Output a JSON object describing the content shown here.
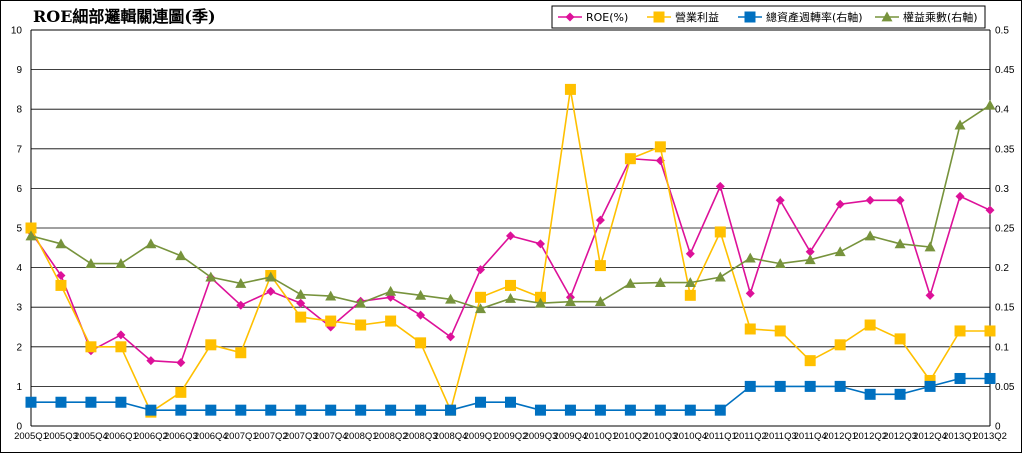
{
  "chart_data": {
    "type": "line",
    "title": "ROE細部邏輯關連圖(季)",
    "x": [
      "2005Q1",
      "2005Q3",
      "2005Q4",
      "2006Q1",
      "2006Q2",
      "2006Q3",
      "2006Q4",
      "2007Q1",
      "2007Q2",
      "2007Q3",
      "2007Q4",
      "2008Q1",
      "2008Q2",
      "2008Q3",
      "2008Q4",
      "2009Q1",
      "2009Q2",
      "2009Q3",
      "2009Q4",
      "2010Q1",
      "2010Q2",
      "2010Q3",
      "2010Q4",
      "2011Q1",
      "2011Q2",
      "2011Q3",
      "2011Q4",
      "2012Q1",
      "2012Q2",
      "2012Q3",
      "2012Q4",
      "2013Q1",
      "2013Q2"
    ],
    "y_left": {
      "min": 0,
      "max": 10,
      "ticks": [
        "0",
        "1",
        "2",
        "3",
        "4",
        "5",
        "6",
        "7",
        "8",
        "9",
        "10"
      ]
    },
    "y_right": {
      "min": 0,
      "max": 0.5,
      "ticks": [
        "0",
        "0.05",
        "0.1",
        "0.15",
        "0.2",
        "0.25",
        "0.3",
        "0.35",
        "0.4",
        "0.45",
        "0.5"
      ]
    },
    "grid": true,
    "legend_position": "top-right",
    "series": [
      {
        "name": "ROE(%)",
        "axis": "left",
        "color": "#dd1199",
        "marker": "diamond",
        "values": [
          4.9,
          3.8,
          1.9,
          2.3,
          1.65,
          1.6,
          3.75,
          3.05,
          3.4,
          3.1,
          2.5,
          3.15,
          3.25,
          2.8,
          2.25,
          3.95,
          4.8,
          4.6,
          3.25,
          5.2,
          6.75,
          6.7,
          4.35,
          6.05,
          3.35,
          5.7,
          4.4,
          5.6,
          5.7,
          5.7,
          3.3,
          5.8,
          5.45
        ]
      },
      {
        "name": "營業利益",
        "axis": "left",
        "color": "#ffc000",
        "marker": "square",
        "values": [
          5.0,
          3.55,
          2.0,
          2.0,
          0.35,
          0.85,
          2.05,
          1.85,
          3.8,
          2.75,
          2.65,
          2.55,
          2.65,
          2.1,
          0.4,
          3.25,
          3.55,
          3.25,
          8.5,
          4.05,
          6.75,
          7.05,
          3.3,
          4.9,
          2.45,
          2.4,
          1.65,
          2.05,
          2.55,
          2.2,
          1.15,
          2.4,
          2.4
        ]
      },
      {
        "name": "總資產週轉率(右軸)",
        "axis": "right",
        "color": "#0070c0",
        "marker": "square",
        "values": [
          0.03,
          0.03,
          0.03,
          0.03,
          0.02,
          0.02,
          0.02,
          0.02,
          0.02,
          0.02,
          0.02,
          0.02,
          0.02,
          0.02,
          0.02,
          0.03,
          0.03,
          0.02,
          0.02,
          0.02,
          0.02,
          0.02,
          0.02,
          0.02,
          0.05,
          0.05,
          0.05,
          0.05,
          0.04,
          0.04,
          0.05,
          0.06,
          0.06
        ]
      },
      {
        "name": "權益乘數(右軸)",
        "axis": "right",
        "color": "#77933c",
        "marker": "triangle",
        "values": [
          0.24,
          0.23,
          0.205,
          0.205,
          0.23,
          0.215,
          0.188,
          0.18,
          0.188,
          0.166,
          0.164,
          0.155,
          0.17,
          0.165,
          0.16,
          0.148,
          0.161,
          0.155,
          0.157,
          0.157,
          0.18,
          0.181,
          0.181,
          0.188,
          0.212,
          0.205,
          0.21,
          0.22,
          0.24,
          0.23,
          0.226,
          0.38,
          0.405
        ]
      }
    ]
  }
}
